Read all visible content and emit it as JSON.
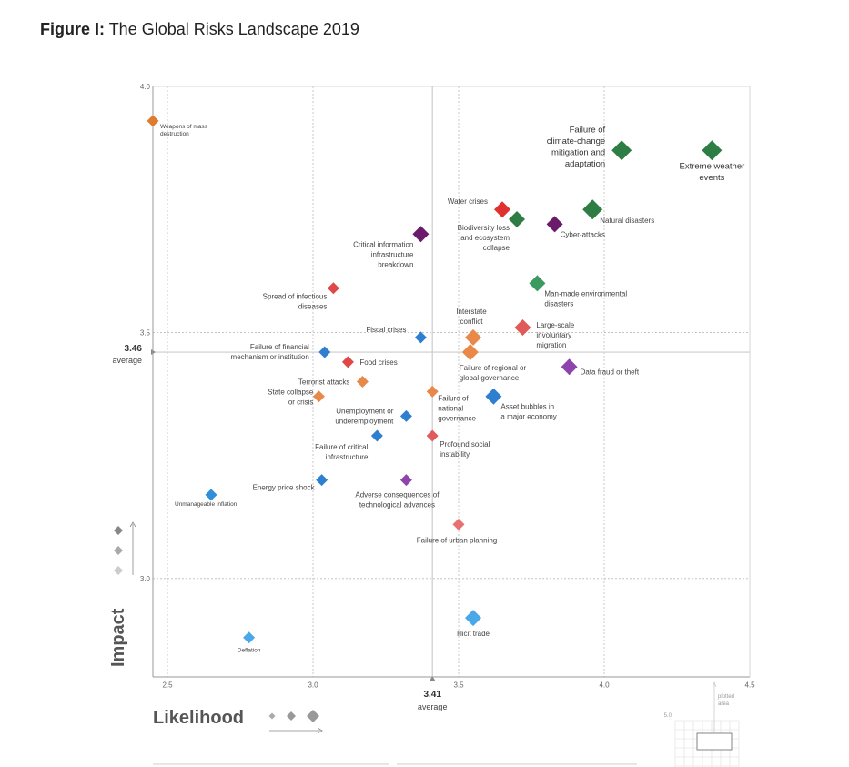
{
  "title": {
    "prefix": "Figure I:",
    "text": "The Global Risks Landscape 2019"
  },
  "colors": {
    "economic": "#2f8fd8",
    "environmental": "#2e8b57",
    "geopolitical": "#e8894a",
    "societal": "#e04848",
    "technological": "#7b3b8c",
    "grid": "#bbbbbb"
  },
  "chart_data": {
    "type": "scatter",
    "xlabel": "Likelihood",
    "ylabel": "Impact",
    "xlim": [
      2.45,
      4.5
    ],
    "ylim": [
      2.8,
      4.0
    ],
    "x_ticks": [
      "2.5",
      "3.0",
      "3.5",
      "4.0",
      "4.5"
    ],
    "y_ticks": [
      "3.0",
      "3.5",
      "4.0"
    ],
    "average_likelihood": {
      "value": "3.41",
      "label": "average"
    },
    "average_impact": {
      "value": "3.46",
      "label": "average"
    },
    "points": [
      {
        "lines": [
          "Weapons of mass",
          "destruction"
        ],
        "x": 2.45,
        "y": 3.93,
        "color": "#e07a30",
        "size": 1
      },
      {
        "lines": [
          "Failure of",
          "climate-change",
          "mitigation and",
          "adaptation"
        ],
        "x": 4.06,
        "y": 3.87,
        "color": "#2e7d45",
        "size": 3
      },
      {
        "lines": [
          "Extreme weather",
          "events"
        ],
        "x": 4.37,
        "y": 3.87,
        "color": "#2e7d45",
        "size": 3
      },
      {
        "lines": [
          "Water crises"
        ],
        "x": 3.65,
        "y": 3.75,
        "color": "#e03030",
        "size": 2
      },
      {
        "lines": [
          "Natural disasters"
        ],
        "x": 3.96,
        "y": 3.75,
        "color": "#2e7d45",
        "size": 3
      },
      {
        "lines": [
          "Biodiversity loss",
          "and ecosystem",
          "collapse"
        ],
        "x": 3.7,
        "y": 3.73,
        "color": "#2e7d45",
        "size": 2
      },
      {
        "lines": [
          "Cyber-attacks"
        ],
        "x": 3.83,
        "y": 3.72,
        "color": "#6a1b6a",
        "size": 2
      },
      {
        "lines": [
          "Critical information",
          "infrastructure",
          "breakdown"
        ],
        "x": 3.37,
        "y": 3.7,
        "color": "#6a1b6a",
        "size": 2
      },
      {
        "lines": [
          "Man-made environmental",
          "disasters"
        ],
        "x": 3.77,
        "y": 3.6,
        "color": "#3a9a60",
        "size": 2
      },
      {
        "lines": [
          "Spread of infectious",
          "diseases"
        ],
        "x": 3.07,
        "y": 3.59,
        "color": "#e04848",
        "size": 1
      },
      {
        "lines": [
          "Large-scale",
          "involuntary",
          "migration"
        ],
        "x": 3.72,
        "y": 3.51,
        "color": "#e05a5a",
        "size": 2
      },
      {
        "lines": [
          "Interstate",
          "conflict"
        ],
        "x": 3.55,
        "y": 3.49,
        "color": "#e8894a",
        "size": 2
      },
      {
        "lines": [
          "Fiscal crises"
        ],
        "x": 3.37,
        "y": 3.49,
        "color": "#2f7fd0",
        "size": 1
      },
      {
        "lines": [
          "Failure of financial",
          "mechanism or institution"
        ],
        "x": 3.04,
        "y": 3.46,
        "color": "#2f7fd0",
        "size": 1
      },
      {
        "lines": [
          "Failure of regional or",
          "global governance"
        ],
        "x": 3.54,
        "y": 3.46,
        "color": "#e8894a",
        "size": 2
      },
      {
        "lines": [
          "Food crises"
        ],
        "x": 3.12,
        "y": 3.44,
        "color": "#e04848",
        "size": 1
      },
      {
        "lines": [
          "Data fraud or theft"
        ],
        "x": 3.88,
        "y": 3.43,
        "color": "#8e44ad",
        "size": 2
      },
      {
        "lines": [
          "Terrorist attacks"
        ],
        "x": 3.17,
        "y": 3.4,
        "color": "#e8894a",
        "size": 1
      },
      {
        "lines": [
          "Failure of",
          "national",
          "governance"
        ],
        "x": 3.41,
        "y": 3.38,
        "color": "#e8894a",
        "size": 1
      },
      {
        "lines": [
          "Asset bubbles in",
          "a major economy"
        ],
        "x": 3.62,
        "y": 3.37,
        "color": "#2f7fd0",
        "size": 2
      },
      {
        "lines": [
          "State collapse",
          "or crisis"
        ],
        "x": 3.02,
        "y": 3.37,
        "color": "#e8894a",
        "size": 1
      },
      {
        "lines": [
          "Unemployment or",
          "underemployment"
        ],
        "x": 3.32,
        "y": 3.33,
        "color": "#2f7fd0",
        "size": 1
      },
      {
        "lines": [
          "Failure of critical",
          "infrastructure"
        ],
        "x": 3.22,
        "y": 3.29,
        "color": "#2f7fd0",
        "size": 1
      },
      {
        "lines": [
          "Profound social",
          "instability"
        ],
        "x": 3.41,
        "y": 3.29,
        "color": "#e05a5a",
        "size": 1
      },
      {
        "lines": [
          "Energy price shock"
        ],
        "x": 3.03,
        "y": 3.2,
        "color": "#2f7fd0",
        "size": 1
      },
      {
        "lines": [
          "Adverse consequences of",
          "technological advances"
        ],
        "x": 3.32,
        "y": 3.2,
        "color": "#8e44ad",
        "size": 1
      },
      {
        "lines": [
          "Unmanageable inflation"
        ],
        "x": 2.65,
        "y": 3.17,
        "color": "#2f8fd8",
        "size": 1
      },
      {
        "lines": [
          "Failure of urban planning"
        ],
        "x": 3.5,
        "y": 3.11,
        "color": "#e87070",
        "size": 1
      },
      {
        "lines": [
          "Illicit trade"
        ],
        "x": 3.55,
        "y": 2.92,
        "color": "#4aa8e8",
        "size": 2
      },
      {
        "lines": [
          "Deflation"
        ],
        "x": 2.78,
        "y": 2.88,
        "color": "#4aa8e8",
        "size": 1
      }
    ]
  },
  "legend": {
    "inset_tick": "5.0",
    "inset_label": [
      "plotted",
      "area"
    ]
  }
}
